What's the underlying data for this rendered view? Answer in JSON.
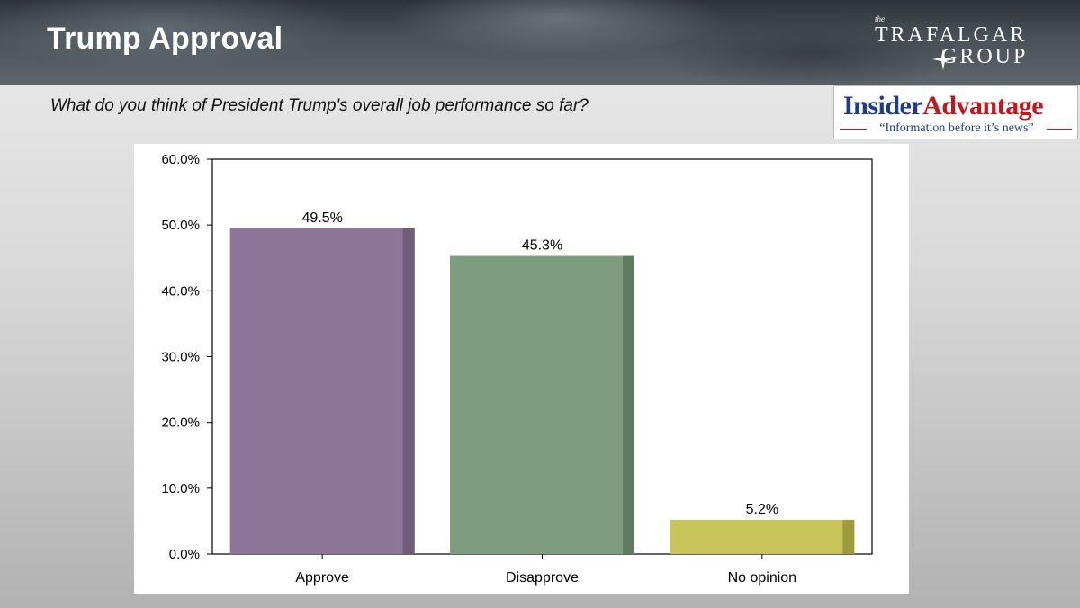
{
  "slide": {
    "title": "Trump Approval",
    "question": "What do you think of President Trump's overall job performance so far?"
  },
  "logos": {
    "trafalgar": {
      "small": "the",
      "line1": "TRAFALGAR",
      "line2": "GROUP"
    },
    "insider_advantage": {
      "word1": "Insider",
      "word2": "Advantage",
      "tagline": "“Information before it’s news”"
    }
  },
  "chart_data": {
    "type": "bar",
    "categories": [
      "Approve",
      "Disapprove",
      "No opinion"
    ],
    "values": [
      49.5,
      45.3,
      5.2
    ],
    "value_labels": [
      "49.5%",
      "45.3%",
      "5.2%"
    ],
    "yticks": [
      "0.0%",
      "10.0%",
      "20.0%",
      "30.0%",
      "40.0%",
      "50.0%",
      "60.0%"
    ],
    "ylim": [
      0,
      60
    ],
    "colors": [
      "#8c7599",
      "#7e9c7e",
      "#c9c45a"
    ],
    "shade_colors": [
      "#6e5c78",
      "#617a61",
      "#9e9a3e"
    ],
    "grid": false,
    "title": "",
    "xlabel": "",
    "ylabel": ""
  }
}
